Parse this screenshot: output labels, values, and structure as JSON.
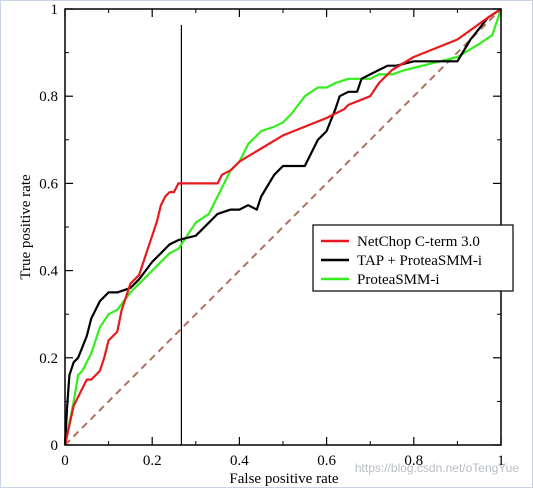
{
  "chart_data": {
    "type": "line",
    "title": "",
    "xlabel": "False positive rate",
    "ylabel": "True positive rate",
    "xlim": [
      0,
      1
    ],
    "ylim": [
      0,
      1
    ],
    "x_ticks": [
      0,
      0.2,
      0.4,
      0.6,
      0.8,
      1
    ],
    "x_tick_labels": [
      "0",
      "0.2",
      "0.4",
      "0.6",
      "0.8",
      "1"
    ],
    "y_ticks": [
      0,
      0.2,
      0.4,
      0.6,
      0.8,
      1
    ],
    "y_tick_labels": [
      "0",
      "0.2",
      "0.4",
      "0.6",
      "0.8",
      "1"
    ],
    "grid": false,
    "legend_position": "center-right",
    "vertical_marker_x": 0.267,
    "diagonal": {
      "color": "#b07060",
      "style": "dashed",
      "x": [
        0,
        1
      ],
      "y": [
        0,
        1
      ]
    },
    "series": [
      {
        "name": "NetChop C-term 3.0",
        "color": "#e8191c",
        "x": [
          0,
          0.02,
          0.03,
          0.05,
          0.06,
          0.08,
          0.09,
          0.1,
          0.11,
          0.12,
          0.13,
          0.15,
          0.17,
          0.19,
          0.2,
          0.21,
          0.22,
          0.23,
          0.24,
          0.25,
          0.26,
          0.27,
          0.28,
          0.35,
          0.36,
          0.38,
          0.4,
          0.45,
          0.5,
          0.6,
          0.62,
          0.64,
          0.65,
          0.7,
          0.72,
          0.75,
          0.8,
          0.9,
          0.97,
          1.0
        ],
        "y": [
          0,
          0.09,
          0.11,
          0.15,
          0.15,
          0.17,
          0.2,
          0.24,
          0.25,
          0.26,
          0.31,
          0.37,
          0.39,
          0.45,
          0.48,
          0.51,
          0.55,
          0.57,
          0.58,
          0.58,
          0.6,
          0.6,
          0.6,
          0.6,
          0.62,
          0.63,
          0.65,
          0.68,
          0.71,
          0.75,
          0.76,
          0.77,
          0.78,
          0.8,
          0.83,
          0.86,
          0.89,
          0.93,
          0.98,
          1.0
        ]
      },
      {
        "name": "TAP + ProteaSMM-i",
        "color": "#000000",
        "x": [
          0,
          0.005,
          0.01,
          0.02,
          0.03,
          0.05,
          0.06,
          0.08,
          0.1,
          0.12,
          0.15,
          0.17,
          0.2,
          0.22,
          0.24,
          0.26,
          0.3,
          0.33,
          0.35,
          0.38,
          0.4,
          0.42,
          0.44,
          0.45,
          0.48,
          0.5,
          0.52,
          0.55,
          0.58,
          0.6,
          0.62,
          0.63,
          0.65,
          0.67,
          0.68,
          0.7,
          0.72,
          0.74,
          0.76,
          0.8,
          0.85,
          0.9,
          0.93,
          0.97,
          1.0
        ],
        "y": [
          0,
          0.09,
          0.16,
          0.19,
          0.2,
          0.25,
          0.29,
          0.33,
          0.35,
          0.35,
          0.36,
          0.38,
          0.42,
          0.44,
          0.46,
          0.47,
          0.48,
          0.51,
          0.53,
          0.54,
          0.54,
          0.55,
          0.54,
          0.57,
          0.62,
          0.64,
          0.64,
          0.64,
          0.7,
          0.72,
          0.77,
          0.8,
          0.81,
          0.81,
          0.84,
          0.85,
          0.86,
          0.87,
          0.87,
          0.88,
          0.88,
          0.88,
          0.93,
          0.98,
          1.0
        ]
      },
      {
        "name": "ProteaSMM-i",
        "color": "#33ee1c",
        "x": [
          0,
          0.02,
          0.03,
          0.04,
          0.06,
          0.08,
          0.1,
          0.12,
          0.15,
          0.18,
          0.2,
          0.22,
          0.24,
          0.26,
          0.28,
          0.3,
          0.33,
          0.35,
          0.37,
          0.38,
          0.4,
          0.42,
          0.45,
          0.48,
          0.5,
          0.52,
          0.55,
          0.58,
          0.6,
          0.62,
          0.65,
          0.7,
          0.72,
          0.75,
          0.78,
          0.82,
          0.86,
          0.9,
          0.95,
          0.98,
          1.0
        ],
        "y": [
          0,
          0.1,
          0.16,
          0.17,
          0.21,
          0.27,
          0.3,
          0.31,
          0.35,
          0.38,
          0.4,
          0.42,
          0.44,
          0.45,
          0.48,
          0.51,
          0.53,
          0.57,
          0.61,
          0.63,
          0.65,
          0.69,
          0.72,
          0.73,
          0.74,
          0.76,
          0.8,
          0.82,
          0.82,
          0.83,
          0.84,
          0.84,
          0.85,
          0.85,
          0.86,
          0.87,
          0.88,
          0.89,
          0.92,
          0.94,
          1.0
        ]
      }
    ]
  },
  "watermark_text": "https://blog.csdn.net/oTengYue"
}
